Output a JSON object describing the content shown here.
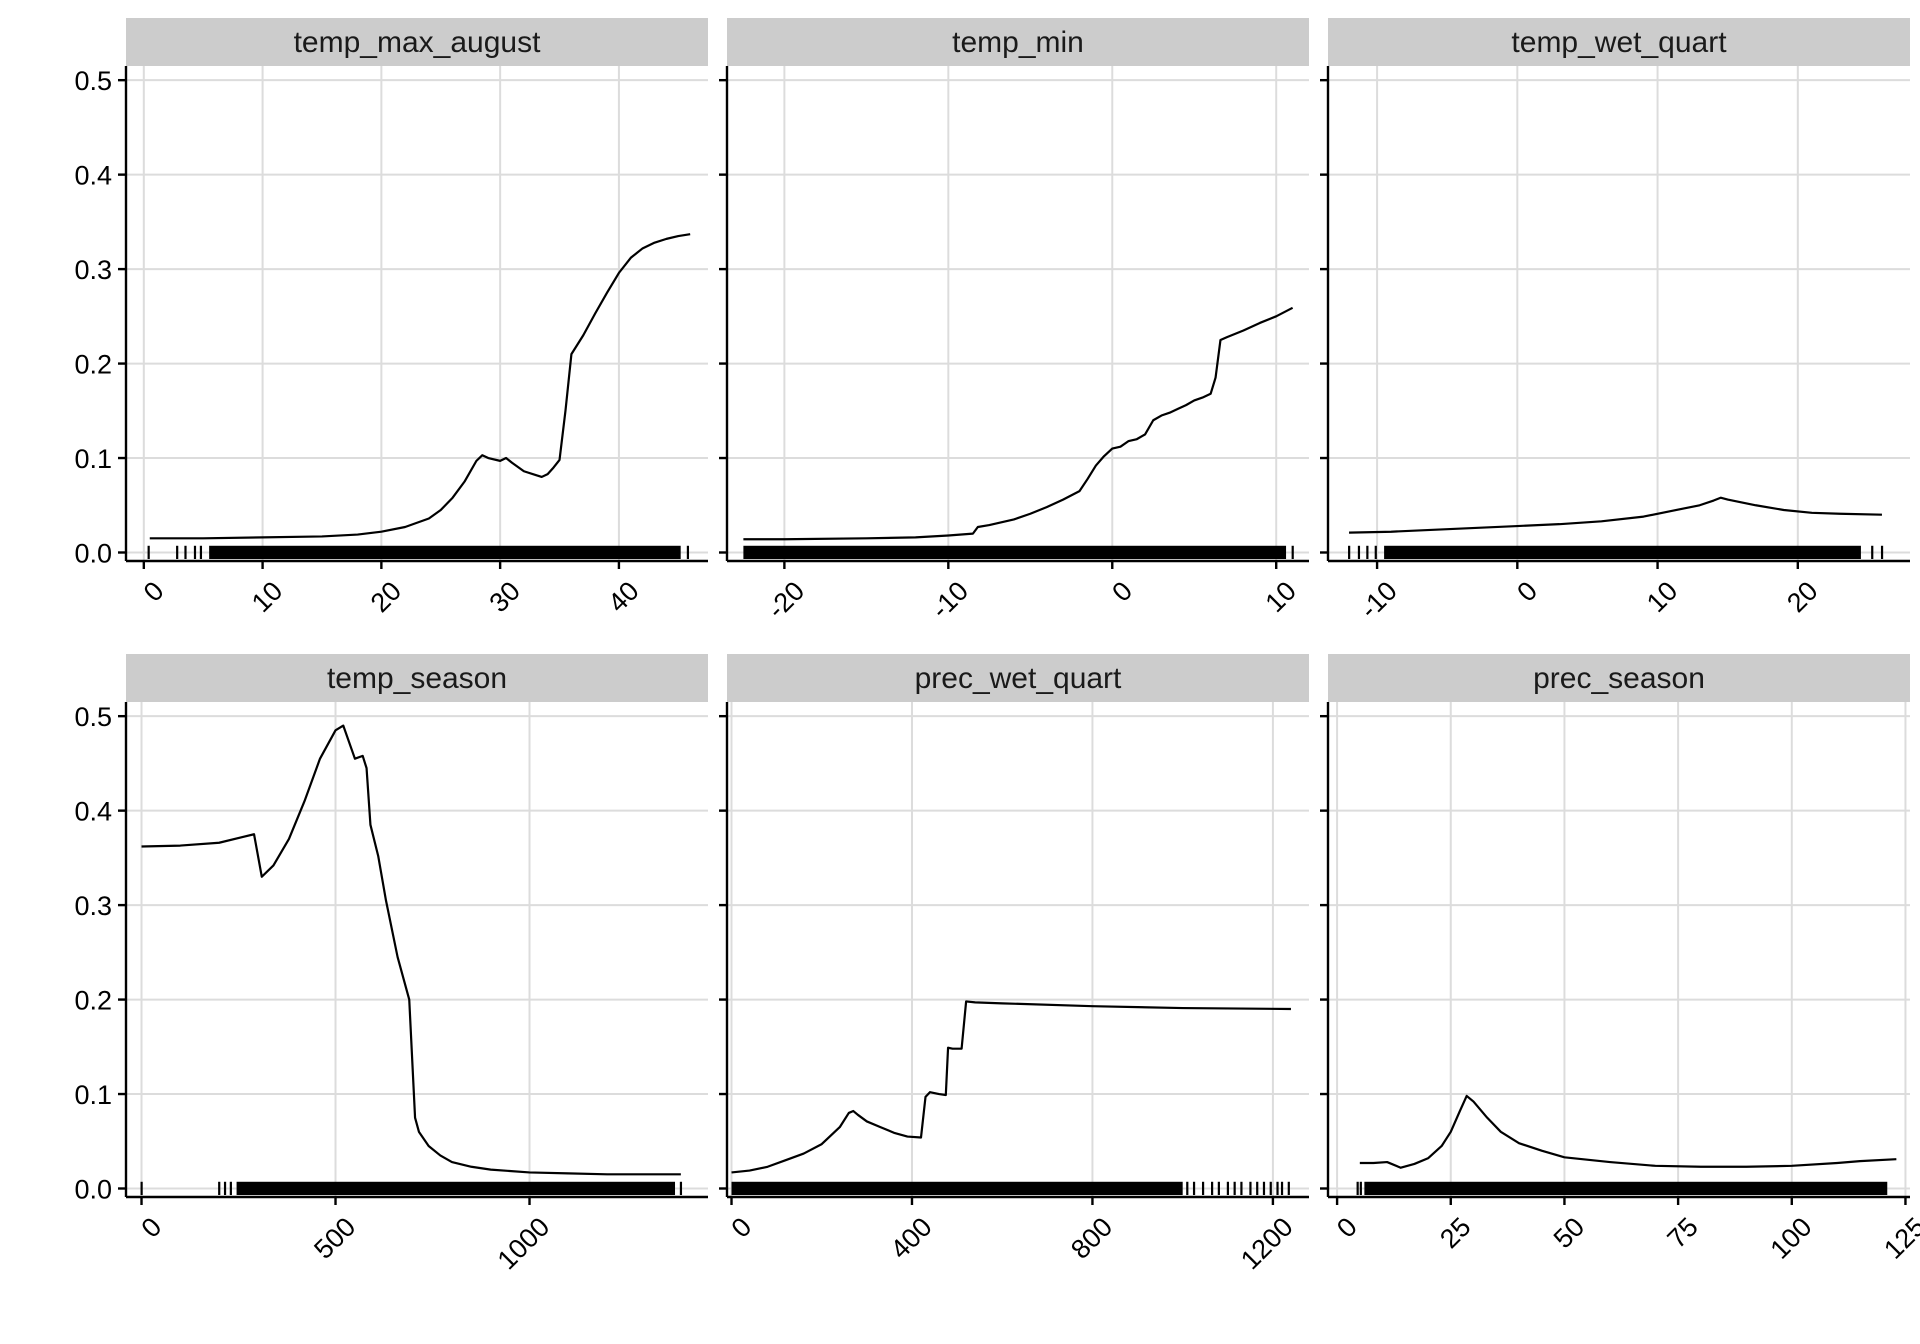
{
  "chart_data": [
    {
      "type": "line",
      "title": "temp_max_august",
      "xlim": [
        -1.5,
        47.5
      ],
      "ylim": [
        -0.009,
        0.515
      ],
      "xticks": [
        0,
        10,
        20,
        30,
        40
      ],
      "xtick_labels": [
        "0",
        "10",
        "20",
        "30",
        "40"
      ],
      "yticks": [
        0,
        0.1,
        0.2,
        0.3,
        0.4,
        0.5
      ],
      "ytick_labels": [
        "0.0",
        "0.1",
        "0.2",
        "0.3",
        "0.4",
        "0.5"
      ],
      "rug_range": [
        5.5,
        45.2
      ],
      "rug_extra": [
        0.4,
        2.8,
        3.5,
        4.3,
        4.8,
        45.8
      ],
      "x": [
        0.5,
        5,
        10,
        15,
        18,
        20,
        22,
        24,
        25,
        26,
        27,
        28,
        28.5,
        29,
        30,
        30.5,
        31,
        32,
        33,
        33.5,
        34,
        34.5,
        35,
        35.5,
        36,
        37,
        38,
        39,
        40,
        41,
        42,
        43,
        44,
        45,
        46
      ],
      "y": [
        0.015,
        0.015,
        0.016,
        0.017,
        0.019,
        0.022,
        0.027,
        0.036,
        0.045,
        0.058,
        0.075,
        0.097,
        0.103,
        0.1,
        0.097,
        0.1,
        0.095,
        0.086,
        0.082,
        0.08,
        0.083,
        0.09,
        0.098,
        0.15,
        0.21,
        0.23,
        0.253,
        0.275,
        0.296,
        0.312,
        0.322,
        0.328,
        0.332,
        0.335,
        0.337
      ]
    },
    {
      "type": "line",
      "title": "temp_min",
      "xlim": [
        -23.5,
        12.0
      ],
      "ylim": [
        -0.009,
        0.515
      ],
      "xticks": [
        -20,
        -10,
        0,
        10
      ],
      "xtick_labels": [
        "-20",
        "-10",
        "0",
        "10"
      ],
      "yticks": [
        0,
        0.1,
        0.2,
        0.3,
        0.4,
        0.5
      ],
      "ytick_labels": [
        "0.0",
        "0.1",
        "0.2",
        "0.3",
        "0.4",
        "0.5"
      ],
      "rug_range": [
        -22.5,
        10.6
      ],
      "rug_extra": [
        11.0
      ],
      "x": [
        -22.5,
        -20,
        -15,
        -12,
        -10,
        -8.5,
        -8.2,
        -7.5,
        -6,
        -5,
        -4,
        -3,
        -2,
        -1.5,
        -1,
        -0.5,
        0,
        0.5,
        1,
        1.5,
        2,
        2.5,
        3,
        3.5,
        4,
        4.5,
        5,
        5.5,
        6,
        6.3,
        6.6,
        7,
        8,
        9,
        10,
        11
      ],
      "y": [
        0.014,
        0.014,
        0.015,
        0.016,
        0.018,
        0.02,
        0.027,
        0.029,
        0.035,
        0.041,
        0.048,
        0.056,
        0.065,
        0.078,
        0.092,
        0.102,
        0.11,
        0.112,
        0.118,
        0.12,
        0.125,
        0.14,
        0.145,
        0.148,
        0.152,
        0.156,
        0.161,
        0.164,
        0.168,
        0.185,
        0.225,
        0.228,
        0.235,
        0.243,
        0.25,
        0.259
      ]
    },
    {
      "type": "line",
      "title": "temp_wet_quart",
      "xlim": [
        -13.5,
        28.0
      ],
      "ylim": [
        -0.009,
        0.515
      ],
      "xticks": [
        -10,
        0,
        10,
        20
      ],
      "xtick_labels": [
        "-10",
        "0",
        "10",
        "20"
      ],
      "yticks": [
        0,
        0.1,
        0.2,
        0.3,
        0.4,
        0.5
      ],
      "ytick_labels": [
        "0.0",
        "0.1",
        "0.2",
        "0.3",
        "0.4",
        "0.5"
      ],
      "rug_range": [
        -9.5,
        24.5
      ],
      "rug_extra": [
        -12.0,
        -11.3,
        -10.7,
        -10.1,
        25.3,
        26.0
      ],
      "x": [
        -12,
        -9,
        -6,
        -3,
        0,
        3,
        6,
        9,
        11,
        13,
        14,
        14.5,
        15,
        17,
        19,
        21,
        23,
        26
      ],
      "y": [
        0.021,
        0.022,
        0.024,
        0.026,
        0.028,
        0.03,
        0.033,
        0.038,
        0.044,
        0.05,
        0.055,
        0.058,
        0.056,
        0.05,
        0.045,
        0.042,
        0.041,
        0.04
      ]
    },
    {
      "type": "line",
      "title": "temp_season",
      "xlim": [
        -40,
        1460
      ],
      "ylim": [
        -0.009,
        0.515
      ],
      "xticks": [
        0,
        500,
        1000
      ],
      "xtick_labels": [
        "0",
        "500",
        "1000"
      ],
      "yticks": [
        0,
        0.1,
        0.2,
        0.3,
        0.4,
        0.5
      ],
      "ytick_labels": [
        "0.0",
        "0.1",
        "0.2",
        "0.3",
        "0.4",
        "0.5"
      ],
      "rug_range": [
        245,
        1375
      ],
      "rug_extra": [
        0,
        200,
        215,
        230,
        1390
      ],
      "x": [
        0,
        100,
        200,
        260,
        290,
        310,
        340,
        380,
        420,
        460,
        500,
        520,
        550,
        570,
        580,
        590,
        610,
        630,
        660,
        690,
        705,
        715,
        740,
        770,
        800,
        850,
        900,
        1000,
        1100,
        1200,
        1300,
        1390
      ],
      "y": [
        0.362,
        0.363,
        0.366,
        0.372,
        0.375,
        0.33,
        0.342,
        0.37,
        0.41,
        0.455,
        0.485,
        0.49,
        0.455,
        0.458,
        0.445,
        0.385,
        0.352,
        0.305,
        0.245,
        0.2,
        0.075,
        0.06,
        0.045,
        0.035,
        0.028,
        0.023,
        0.02,
        0.017,
        0.016,
        0.015,
        0.015,
        0.015
      ]
    },
    {
      "type": "line",
      "title": "prec_wet_quart",
      "xlim": [
        -10,
        1280
      ],
      "ylim": [
        -0.009,
        0.515
      ],
      "xticks": [
        0,
        400,
        800,
        1200
      ],
      "xtick_labels": [
        "0",
        "400",
        "800",
        "1200"
      ],
      "yticks": [
        0,
        0.1,
        0.2,
        0.3,
        0.4,
        0.5
      ],
      "ytick_labels": [
        "0.0",
        "0.1",
        "0.2",
        "0.3",
        "0.4",
        "0.5"
      ],
      "rug_range": [
        0,
        1000
      ],
      "rug_extra": [
        1010,
        1025,
        1045,
        1065,
        1080,
        1100,
        1115,
        1130,
        1150,
        1165,
        1180,
        1195,
        1210,
        1220,
        1235
      ],
      "x": [
        0,
        40,
        80,
        120,
        160,
        200,
        240,
        260,
        270,
        280,
        300,
        330,
        360,
        390,
        420,
        430,
        440,
        460,
        475,
        480,
        490,
        510,
        520,
        540,
        600,
        800,
        1000,
        1240
      ],
      "y": [
        0.017,
        0.019,
        0.023,
        0.03,
        0.037,
        0.047,
        0.065,
        0.08,
        0.082,
        0.078,
        0.071,
        0.065,
        0.059,
        0.055,
        0.054,
        0.097,
        0.102,
        0.1,
        0.099,
        0.149,
        0.148,
        0.148,
        0.198,
        0.197,
        0.196,
        0.193,
        0.191,
        0.19
      ]
    },
    {
      "type": "line",
      "title": "prec_season",
      "xlim": [
        -2,
        126
      ],
      "ylim": [
        -0.009,
        0.515
      ],
      "xticks": [
        0,
        25,
        50,
        75,
        100,
        125
      ],
      "xtick_labels": [
        "0",
        "25",
        "50",
        "75",
        "100",
        "125"
      ],
      "yticks": [
        0,
        0.1,
        0.2,
        0.3,
        0.4,
        0.5
      ],
      "ytick_labels": [
        "0.0",
        "0.1",
        "0.2",
        "0.3",
        "0.4",
        "0.5"
      ],
      "rug_range": [
        6,
        121
      ],
      "rug_extra": [
        4.5,
        5.2
      ],
      "x": [
        5,
        8,
        11,
        14,
        17,
        20,
        23,
        25,
        27,
        28.5,
        30,
        33,
        36,
        40,
        45,
        50,
        60,
        70,
        80,
        90,
        100,
        110,
        115,
        123
      ],
      "y": [
        0.027,
        0.027,
        0.028,
        0.022,
        0.026,
        0.032,
        0.045,
        0.06,
        0.082,
        0.098,
        0.092,
        0.075,
        0.06,
        0.048,
        0.04,
        0.033,
        0.028,
        0.024,
        0.023,
        0.023,
        0.024,
        0.027,
        0.029,
        0.031
      ]
    }
  ]
}
